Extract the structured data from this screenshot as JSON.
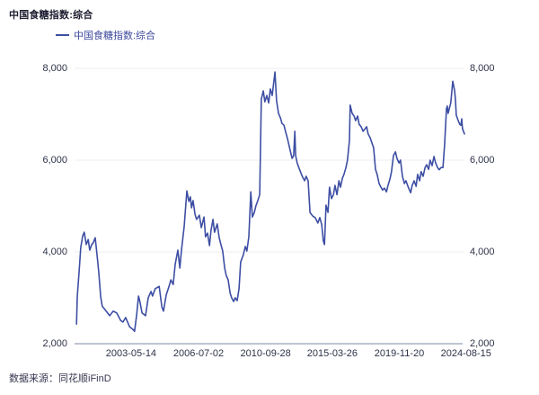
{
  "title": "中国食糖指数:综合",
  "legend": {
    "label": "中国食糖指数:综合",
    "marker_color": "#3D4EA3"
  },
  "footer": {
    "source": "数据来源：同花顺iFinD"
  },
  "colors": {
    "line": "#3D4EA3",
    "grid": "#EDEDF3",
    "axis": "#A9B0C3",
    "tick_text": "#2E3248",
    "title_text": "#1C1C30",
    "legend_text": "#3D4A9C",
    "footer_text": "#363650",
    "background": "#FFFFFF"
  },
  "chart_data": {
    "type": "line",
    "title": "中国食糖指数:综合",
    "series_name": "中国食糖指数:综合",
    "xlabel": "",
    "ylabel": "",
    "ylim": [
      2000,
      8000
    ],
    "grid": "horizontal",
    "legend_position": "top-left",
    "y_tick_values": [
      8000,
      6000,
      4000,
      2000
    ],
    "y_tick_labels": [
      "8,000",
      "6,000",
      "4,000",
      "2,000"
    ],
    "x_tick_labels": [
      "2003-05-14",
      "2006-07-02",
      "2010-09-28",
      "2015-03-26",
      "2019-11-20",
      "2024-08-15"
    ],
    "x_tick_pos": [
      0.145,
      0.318,
      0.49,
      0.661,
      0.833,
      1.004
    ],
    "points": [
      [
        0.005,
        2430
      ],
      [
        0.007,
        3020
      ],
      [
        0.012,
        3610
      ],
      [
        0.016,
        4100
      ],
      [
        0.021,
        4350
      ],
      [
        0.025,
        4430
      ],
      [
        0.03,
        4160
      ],
      [
        0.035,
        4270
      ],
      [
        0.039,
        4040
      ],
      [
        0.044,
        4160
      ],
      [
        0.048,
        4200
      ],
      [
        0.053,
        4310
      ],
      [
        0.058,
        3900
      ],
      [
        0.062,
        3570
      ],
      [
        0.067,
        3020
      ],
      [
        0.071,
        2820
      ],
      [
        0.081,
        2710
      ],
      [
        0.09,
        2610
      ],
      [
        0.099,
        2710
      ],
      [
        0.108,
        2670
      ],
      [
        0.118,
        2510
      ],
      [
        0.124,
        2470
      ],
      [
        0.131,
        2570
      ],
      [
        0.141,
        2370
      ],
      [
        0.15,
        2310
      ],
      [
        0.154,
        2270
      ],
      [
        0.159,
        2610
      ],
      [
        0.164,
        3040
      ],
      [
        0.168,
        2900
      ],
      [
        0.173,
        2670
      ],
      [
        0.182,
        2610
      ],
      [
        0.189,
        3000
      ],
      [
        0.196,
        3140
      ],
      [
        0.2,
        3040
      ],
      [
        0.207,
        3200
      ],
      [
        0.217,
        3250
      ],
      [
        0.224,
        2800
      ],
      [
        0.228,
        2710
      ],
      [
        0.235,
        3060
      ],
      [
        0.242,
        3240
      ],
      [
        0.247,
        3390
      ],
      [
        0.253,
        3290
      ],
      [
        0.258,
        3730
      ],
      [
        0.265,
        4040
      ],
      [
        0.27,
        3650
      ],
      [
        0.274,
        4020
      ],
      [
        0.281,
        4550
      ],
      [
        0.288,
        5330
      ],
      [
        0.293,
        5100
      ],
      [
        0.297,
        5200
      ],
      [
        0.3,
        4960
      ],
      [
        0.304,
        5120
      ],
      [
        0.309,
        4820
      ],
      [
        0.313,
        4710
      ],
      [
        0.32,
        4800
      ],
      [
        0.325,
        4530
      ],
      [
        0.332,
        4760
      ],
      [
        0.336,
        4330
      ],
      [
        0.341,
        4410
      ],
      [
        0.346,
        4140
      ],
      [
        0.35,
        4470
      ],
      [
        0.355,
        4710
      ],
      [
        0.359,
        4430
      ],
      [
        0.366,
        4610
      ],
      [
        0.371,
        4310
      ],
      [
        0.376,
        4140
      ],
      [
        0.38,
        4020
      ],
      [
        0.385,
        3650
      ],
      [
        0.389,
        3490
      ],
      [
        0.394,
        3390
      ],
      [
        0.399,
        3100
      ],
      [
        0.403,
        3000
      ],
      [
        0.408,
        2920
      ],
      [
        0.412,
        3000
      ],
      [
        0.417,
        2940
      ],
      [
        0.422,
        3200
      ],
      [
        0.426,
        3780
      ],
      [
        0.433,
        3940
      ],
      [
        0.438,
        4120
      ],
      [
        0.442,
        4020
      ],
      [
        0.447,
        4330
      ],
      [
        0.452,
        5310
      ],
      [
        0.456,
        4760
      ],
      [
        0.461,
        4860
      ],
      [
        0.465,
        5000
      ],
      [
        0.47,
        5120
      ],
      [
        0.475,
        5250
      ],
      [
        0.479,
        7330
      ],
      [
        0.484,
        7510
      ],
      [
        0.488,
        7270
      ],
      [
        0.493,
        7410
      ],
      [
        0.498,
        7250
      ],
      [
        0.502,
        7550
      ],
      [
        0.507,
        7410
      ],
      [
        0.514,
        7920
      ],
      [
        0.518,
        7310
      ],
      [
        0.523,
        7020
      ],
      [
        0.528,
        6920
      ],
      [
        0.532,
        6800
      ],
      [
        0.537,
        6760
      ],
      [
        0.541,
        6630
      ],
      [
        0.546,
        6470
      ],
      [
        0.551,
        6290
      ],
      [
        0.555,
        6140
      ],
      [
        0.558,
        6040
      ],
      [
        0.562,
        6100
      ],
      [
        0.565,
        6630
      ],
      [
        0.567,
        6100
      ],
      [
        0.571,
        5940
      ],
      [
        0.576,
        5820
      ],
      [
        0.581,
        5710
      ],
      [
        0.585,
        5630
      ],
      [
        0.59,
        5550
      ],
      [
        0.594,
        5650
      ],
      [
        0.599,
        5550
      ],
      [
        0.604,
        4860
      ],
      [
        0.611,
        4780
      ],
      [
        0.617,
        4750
      ],
      [
        0.624,
        4630
      ],
      [
        0.629,
        4750
      ],
      [
        0.634,
        4590
      ],
      [
        0.638,
        4240
      ],
      [
        0.641,
        4160
      ],
      [
        0.643,
        4590
      ],
      [
        0.645,
        5020
      ],
      [
        0.65,
        4860
      ],
      [
        0.654,
        5410
      ],
      [
        0.659,
        5160
      ],
      [
        0.664,
        5250
      ],
      [
        0.668,
        5450
      ],
      [
        0.673,
        5250
      ],
      [
        0.678,
        5550
      ],
      [
        0.682,
        5410
      ],
      [
        0.687,
        5610
      ],
      [
        0.691,
        5690
      ],
      [
        0.696,
        5840
      ],
      [
        0.7,
        6000
      ],
      [
        0.705,
        6430
      ],
      [
        0.707,
        7200
      ],
      [
        0.712,
        7020
      ],
      [
        0.717,
        6960
      ],
      [
        0.721,
        6860
      ],
      [
        0.726,
        6960
      ],
      [
        0.73,
        6780
      ],
      [
        0.735,
        6730
      ],
      [
        0.74,
        6630
      ],
      [
        0.744,
        6670
      ],
      [
        0.749,
        6730
      ],
      [
        0.753,
        6570
      ],
      [
        0.758,
        6490
      ],
      [
        0.763,
        6370
      ],
      [
        0.767,
        6270
      ],
      [
        0.772,
        5800
      ],
      [
        0.776,
        5690
      ],
      [
        0.781,
        5490
      ],
      [
        0.786,
        5410
      ],
      [
        0.79,
        5350
      ],
      [
        0.795,
        5390
      ],
      [
        0.8,
        5310
      ],
      [
        0.804,
        5450
      ],
      [
        0.809,
        5590
      ],
      [
        0.813,
        5750
      ],
      [
        0.818,
        6100
      ],
      [
        0.823,
        6180
      ],
      [
        0.827,
        6040
      ],
      [
        0.832,
        5940
      ],
      [
        0.836,
        6000
      ],
      [
        0.841,
        5650
      ],
      [
        0.846,
        5490
      ],
      [
        0.85,
        5550
      ],
      [
        0.855,
        5430
      ],
      [
        0.859,
        5350
      ],
      [
        0.862,
        5290
      ],
      [
        0.866,
        5450
      ],
      [
        0.871,
        5550
      ],
      [
        0.876,
        5430
      ],
      [
        0.88,
        5690
      ],
      [
        0.885,
        5550
      ],
      [
        0.889,
        5750
      ],
      [
        0.894,
        5650
      ],
      [
        0.899,
        5840
      ],
      [
        0.903,
        5900
      ],
      [
        0.908,
        5800
      ],
      [
        0.912,
        6000
      ],
      [
        0.917,
        5880
      ],
      [
        0.922,
        6080
      ],
      [
        0.926,
        5940
      ],
      [
        0.931,
        5840
      ],
      [
        0.935,
        5790
      ],
      [
        0.94,
        5840
      ],
      [
        0.945,
        5840
      ],
      [
        0.949,
        6330
      ],
      [
        0.954,
        7120
      ],
      [
        0.956,
        7180
      ],
      [
        0.958,
        7020
      ],
      [
        0.961,
        7120
      ],
      [
        0.965,
        7250
      ],
      [
        0.97,
        7720
      ],
      [
        0.975,
        7510
      ],
      [
        0.977,
        7310
      ],
      [
        0.979,
        6980
      ],
      [
        0.984,
        6860
      ],
      [
        0.988,
        6780
      ],
      [
        0.991,
        6760
      ],
      [
        0.993,
        6900
      ],
      [
        0.995,
        6690
      ],
      [
        1.0,
        6570
      ]
    ]
  }
}
